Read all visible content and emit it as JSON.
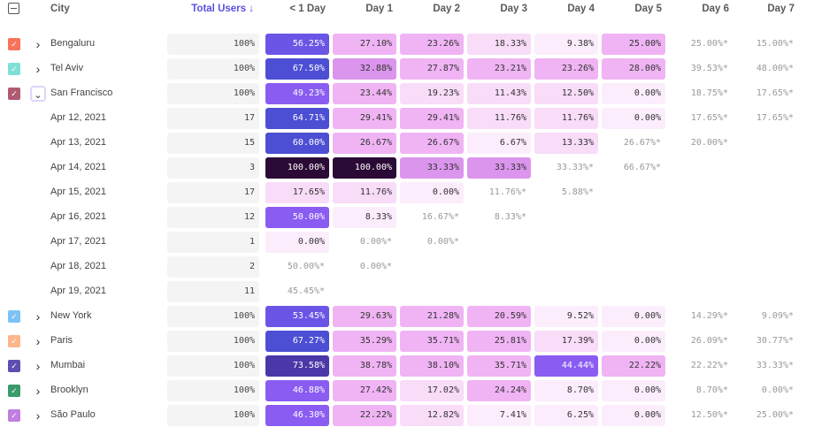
{
  "header": {
    "city": "City",
    "total_users": "Total Users ↓",
    "columns": [
      "< 1 Day",
      "Day 1",
      "Day 2",
      "Day 3",
      "Day 4",
      "Day 5",
      "Day 6",
      "Day 7"
    ]
  },
  "accent_color": "#5b4fe0",
  "rows": [
    {
      "label": "Bengaluru",
      "type": "city",
      "color": "#f7735a",
      "total": "100%",
      "cells": [
        "56.25%",
        "27.10%",
        "23.26%",
        "18.33%",
        "9.38%",
        "25.00%",
        "25.00%*",
        "15.00%*"
      ]
    },
    {
      "label": "Tel Aviv",
      "type": "city",
      "color": "#80e0d8",
      "total": "100%",
      "cells": [
        "67.50%",
        "32.88%",
        "27.87%",
        "23.21%",
        "23.26%",
        "28.00%",
        "39.53%*",
        "48.00%*"
      ]
    },
    {
      "label": "San Francisco",
      "type": "city",
      "expanded": true,
      "color": "#b05a72",
      "total": "100%",
      "cells": [
        "49.23%",
        "23.44%",
        "19.23%",
        "11.43%",
        "12.50%",
        "0.00%",
        "18.75%*",
        "17.65%*"
      ]
    },
    {
      "label": "Apr 12, 2021",
      "type": "date",
      "total": "17",
      "cells": [
        "64.71%",
        "29.41%",
        "29.41%",
        "11.76%",
        "11.76%",
        "0.00%",
        "17.65%*",
        "17.65%*"
      ]
    },
    {
      "label": "Apr 13, 2021",
      "type": "date",
      "total": "15",
      "cells": [
        "60.00%",
        "26.67%",
        "26.67%",
        "6.67%",
        "13.33%",
        "26.67%*",
        "20.00%*"
      ]
    },
    {
      "label": "Apr 14, 2021",
      "type": "date",
      "total": "3",
      "cells": [
        "100.00%",
        "100.00%",
        "33.33%",
        "33.33%",
        "33.33%*",
        "66.67%*"
      ]
    },
    {
      "label": "Apr 15, 2021",
      "type": "date",
      "total": "17",
      "cells": [
        "17.65%",
        "11.76%",
        "0.00%",
        "11.76%*",
        "5.88%*"
      ]
    },
    {
      "label": "Apr 16, 2021",
      "type": "date",
      "total": "12",
      "cells": [
        "50.00%",
        "8.33%",
        "16.67%*",
        "8.33%*"
      ]
    },
    {
      "label": "Apr 17, 2021",
      "type": "date",
      "total": "1",
      "cells": [
        "0.00%",
        "0.00%*",
        "0.00%*"
      ]
    },
    {
      "label": "Apr 18, 2021",
      "type": "date",
      "total": "2",
      "cells": [
        "50.00%*",
        "0.00%*"
      ]
    },
    {
      "label": "Apr 19, 2021",
      "type": "date",
      "total": "11",
      "cells": [
        "45.45%*"
      ]
    },
    {
      "label": "New York",
      "type": "city",
      "color": "#7ec2f5",
      "total": "100%",
      "cells": [
        "53.45%",
        "29.63%",
        "21.28%",
        "20.59%",
        "9.52%",
        "0.00%",
        "14.29%*",
        "9.09%*"
      ]
    },
    {
      "label": "Paris",
      "type": "city",
      "color": "#fdb58a",
      "total": "100%",
      "cells": [
        "67.27%",
        "35.29%",
        "35.71%",
        "25.81%",
        "17.39%",
        "0.00%",
        "26.09%*",
        "30.77%*"
      ]
    },
    {
      "label": "Mumbai",
      "type": "city",
      "color": "#5c4fb0",
      "total": "100%",
      "cells": [
        "73.58%",
        "38.78%",
        "38.10%",
        "35.71%",
        "44.44%",
        "22.22%",
        "22.22%*",
        "33.33%*"
      ]
    },
    {
      "label": "Brooklyn",
      "type": "city",
      "color": "#3a9a6a",
      "total": "100%",
      "cells": [
        "46.88%",
        "27.42%",
        "17.02%",
        "24.24%",
        "8.70%",
        "0.00%",
        "8.70%*",
        "0.00%*"
      ]
    },
    {
      "label": "São Paulo",
      "type": "city",
      "color": "#c07ee0",
      "total": "100%",
      "cells": [
        "46.30%",
        "22.22%",
        "12.82%",
        "7.41%",
        "6.25%",
        "0.00%",
        "12.50%*",
        "25.00%*"
      ]
    }
  ]
}
